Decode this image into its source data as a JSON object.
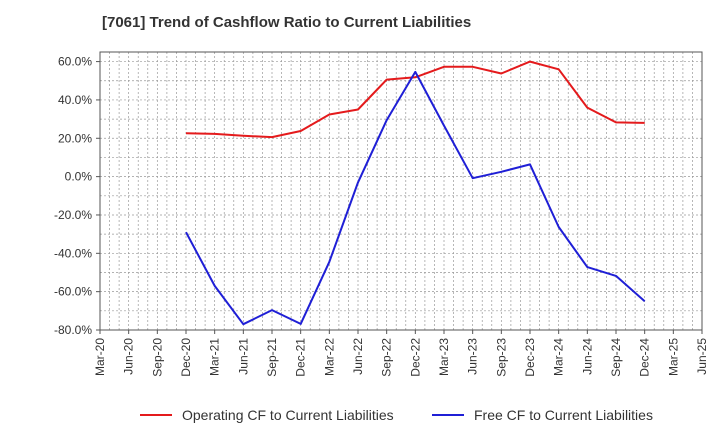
{
  "title": "[7061]  Trend of Cashflow Ratio to Current Liabilities",
  "colors": {
    "operating": "#e41a1c",
    "free": "#1f1fd6",
    "grid": "#999999",
    "axis": "#555555"
  },
  "chart_data": {
    "type": "line",
    "title": "[7061]  Trend of Cashflow Ratio to Current Liabilities",
    "xlabel": "",
    "ylabel": "",
    "x_ticks": [
      "Mar-20",
      "Jun-20",
      "Sep-20",
      "Dec-20",
      "Mar-21",
      "Jun-21",
      "Sep-21",
      "Dec-21",
      "Mar-22",
      "Jun-22",
      "Sep-22",
      "Dec-22",
      "Mar-23",
      "Jun-23",
      "Sep-23",
      "Dec-23",
      "Mar-24",
      "Jun-24",
      "Sep-24",
      "Dec-24",
      "Mar-25",
      "Jun-25"
    ],
    "y_ticks": [
      "-80.0%",
      "-60.0%",
      "-40.0%",
      "-20.0%",
      "0.0%",
      "20.0%",
      "40.0%",
      "60.0%"
    ],
    "y_tick_values": [
      -80,
      -60,
      -40,
      -20,
      0,
      20,
      40,
      60
    ],
    "ylim": [
      -80,
      65
    ],
    "grid": true,
    "legend_position": "bottom",
    "series": [
      {
        "name": "Operating CF to Current Liabilities",
        "color": "#e41a1c",
        "x": [
          "Dec-20",
          "Mar-21",
          "Jun-21",
          "Sep-21",
          "Dec-21",
          "Mar-22",
          "Jun-22",
          "Sep-22",
          "Dec-22",
          "Mar-23",
          "Jun-23",
          "Sep-23",
          "Dec-23",
          "Mar-24",
          "Jun-24",
          "Sep-24",
          "Dec-24"
        ],
        "values": [
          22.6,
          22.3,
          21.3,
          20.6,
          23.8,
          32.4,
          35.0,
          50.6,
          51.8,
          57.3,
          57.3,
          53.8,
          60.0,
          56.0,
          36.0,
          28.3,
          28.0
        ]
      },
      {
        "name": "Free CF to Current Liabilities",
        "color": "#1f1fd6",
        "x": [
          "Dec-20",
          "Mar-21",
          "Jun-21",
          "Sep-21",
          "Dec-21",
          "Mar-22",
          "Jun-22",
          "Sep-22",
          "Dec-22",
          "Mar-23",
          "Jun-23",
          "Sep-23",
          "Dec-23",
          "Mar-24",
          "Jun-24",
          "Sep-24",
          "Dec-24"
        ],
        "values": [
          -29.0,
          -57.0,
          -77.0,
          -69.6,
          -76.8,
          -44.5,
          -3.0,
          29.5,
          54.6,
          26.6,
          -0.8,
          2.5,
          6.4,
          -26.3,
          -47.2,
          -51.8,
          -65.0
        ]
      }
    ]
  }
}
